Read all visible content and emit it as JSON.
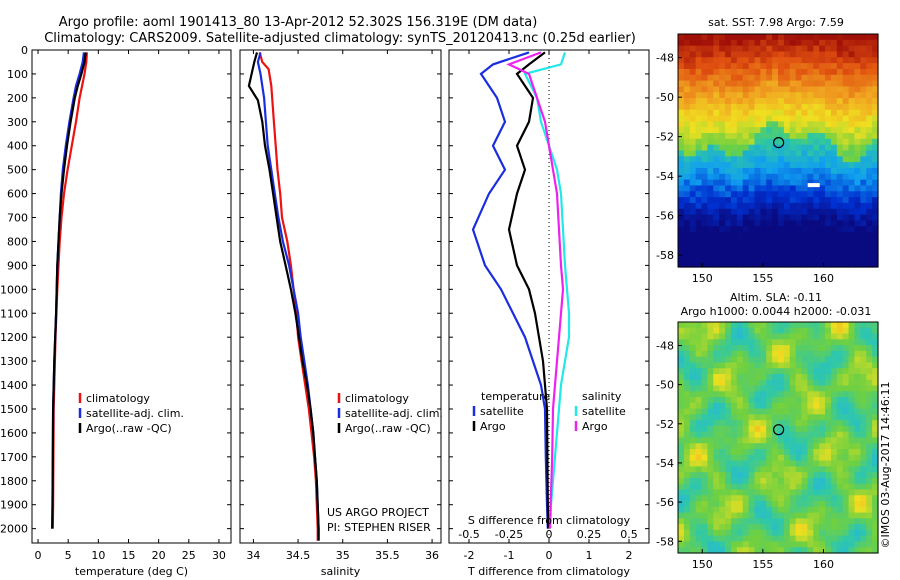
{
  "header": {
    "line1": "Argo profile: aoml 1901413_80 13-Apr-2012 52.302S 156.319E (DM data)",
    "line2": "Climatology: CARS2009. Satellite-adjusted climatology: synTS_20120413.nc (0.25d earlier)"
  },
  "side_stamp": "©IMOS 03-Aug-2017 14:46:11",
  "colors": {
    "climatology": "#ee1111",
    "satellite": "#1a2ee0",
    "argo": "#000000",
    "sal_satellite": "#22e8e8",
    "sal_argo": "#ee22ee"
  },
  "chart_data": [
    {
      "type": "line",
      "panel": "temperature",
      "xlabel": "temperature (deg C)",
      "ylabel": "",
      "xlim": [
        -1,
        32
      ],
      "ylim": [
        2060,
        0
      ],
      "xticks": [
        0,
        5,
        10,
        15,
        20,
        25,
        30
      ],
      "yticks": [
        0,
        100,
        200,
        300,
        400,
        500,
        600,
        700,
        800,
        900,
        1000,
        1100,
        1200,
        1300,
        1400,
        1500,
        1600,
        1700,
        1800,
        1900,
        2000
      ],
      "legend": [
        "climatology",
        "satellite-adj. clim.",
        "Argo(..raw -QC)"
      ],
      "series": [
        {
          "name": "climatology",
          "color": "#ee1111",
          "x": [
            8.1,
            8.0,
            7.7,
            7.3,
            6.9,
            6.3,
            5.6,
            4.9,
            4.3,
            3.9,
            3.6,
            3.4,
            3.2,
            3.05,
            2.9,
            2.8,
            2.7,
            2.6,
            2.55,
            2.5,
            2.45
          ],
          "y": [
            10,
            50,
            100,
            150,
            200,
            300,
            400,
            500,
            600,
            700,
            800,
            900,
            1000,
            1100,
            1200,
            1300,
            1400,
            1500,
            1700,
            1900,
            2000
          ]
        },
        {
          "name": "satellite-adj. clim.",
          "color": "#1a2ee0",
          "x": [
            7.6,
            7.4,
            6.9,
            6.3,
            5.9,
            5.2,
            4.6,
            4.1,
            3.8,
            3.6,
            3.4,
            3.2,
            3.1,
            3.0,
            2.85,
            2.7,
            2.6,
            2.5,
            2.45,
            2.4,
            2.35
          ],
          "y": [
            10,
            50,
            100,
            150,
            200,
            300,
            400,
            500,
            600,
            700,
            800,
            900,
            1000,
            1100,
            1200,
            1300,
            1400,
            1500,
            1700,
            1900,
            2000
          ]
        },
        {
          "name": "Argo(..raw -QC)",
          "color": "#000000",
          "x": [
            7.9,
            7.7,
            7.2,
            6.6,
            6.1,
            5.4,
            4.8,
            4.3,
            3.9,
            3.6,
            3.4,
            3.2,
            3.1,
            3.0,
            2.85,
            2.7,
            2.6,
            2.5,
            2.45,
            2.4,
            2.35
          ],
          "y": [
            10,
            50,
            100,
            150,
            200,
            300,
            400,
            500,
            600,
            700,
            800,
            900,
            1000,
            1100,
            1200,
            1300,
            1400,
            1500,
            1700,
            1900,
            2000
          ]
        }
      ]
    },
    {
      "type": "line",
      "panel": "salinity",
      "xlabel": "salinity",
      "ylabel": "",
      "xlim": [
        33.85,
        36.1
      ],
      "ylim": [
        2060,
        0
      ],
      "xticks": [
        34,
        34.5,
        35,
        35.5,
        36
      ],
      "legend": [
        "climatology",
        "satellite-adj. clim.",
        "Argo(..raw -QC)"
      ],
      "annotations": [
        "US ARGO PROJECT",
        "PI: STEPHEN RISER"
      ],
      "series": [
        {
          "name": "climatology",
          "color": "#ee1111",
          "x": [
            34.07,
            34.1,
            34.17,
            34.2,
            34.23,
            34.25,
            34.27,
            34.3,
            34.32,
            34.38,
            34.42,
            34.45,
            34.48,
            34.5,
            34.54,
            34.58,
            34.62,
            34.65,
            34.68,
            34.7,
            34.71,
            34.72,
            34.72
          ],
          "y": [
            10,
            50,
            80,
            150,
            300,
            400,
            500,
            600,
            700,
            800,
            900,
            1000,
            1100,
            1200,
            1300,
            1400,
            1500,
            1600,
            1700,
            1800,
            1900,
            2000,
            2050
          ]
        },
        {
          "name": "satellite-adj. clim.",
          "color": "#1a2ee0",
          "x": [
            34.08,
            34.05,
            34.08,
            34.12,
            34.14,
            34.16,
            34.2,
            34.24,
            34.28,
            34.33,
            34.4,
            34.45,
            34.5,
            34.53,
            34.57,
            34.61,
            34.64,
            34.67,
            34.69,
            34.71,
            34.72,
            34.73,
            34.73
          ],
          "y": [
            10,
            50,
            100,
            200,
            300,
            400,
            500,
            600,
            700,
            800,
            900,
            1000,
            1100,
            1200,
            1300,
            1400,
            1500,
            1600,
            1700,
            1800,
            1900,
            2000,
            2050
          ]
        },
        {
          "name": "Argo(..raw -QC)",
          "color": "#000000",
          "x": [
            34.04,
            34.01,
            33.95,
            34.05,
            34.1,
            34.13,
            34.18,
            34.22,
            34.26,
            34.3,
            34.36,
            34.42,
            34.47,
            34.51,
            34.55,
            34.6,
            34.64,
            34.67,
            34.69,
            34.71,
            34.72,
            34.73,
            34.73
          ],
          "y": [
            10,
            50,
            150,
            210,
            300,
            400,
            500,
            600,
            700,
            800,
            900,
            1000,
            1100,
            1200,
            1300,
            1400,
            1500,
            1600,
            1700,
            1800,
            1900,
            2000,
            2050
          ]
        }
      ]
    },
    {
      "type": "line",
      "panel": "difference",
      "xlabel": "T difference from climatology",
      "xlabel_top": "S difference from climatology",
      "xlim": [
        -2.5,
        2.5
      ],
      "ylim": [
        2060,
        0
      ],
      "xticks": [
        -2,
        -1,
        0,
        1,
        2
      ],
      "xticks_s": [
        "-0.5",
        "-0.25",
        "0",
        "0.25",
        "0.5"
      ],
      "legend_temperature": {
        "title": "temperature",
        "items": [
          "satellite",
          "Argo"
        ]
      },
      "legend_salinity": {
        "title": "salinity",
        "items": [
          "satellite",
          "Argo"
        ]
      },
      "series": [
        {
          "name": "temperature satellite",
          "color": "#1a2ee0",
          "x": [
            -0.5,
            -1.4,
            -1.7,
            -1.3,
            -1.1,
            -1.4,
            -1.1,
            -1.5,
            -1.9,
            -1.6,
            -1.2,
            -0.9,
            -0.6,
            -0.4,
            -0.2,
            -0.1,
            -0.08,
            -0.05,
            -0.03
          ],
          "y": [
            10,
            60,
            100,
            200,
            300,
            400,
            500,
            600,
            750,
            900,
            1000,
            1100,
            1200,
            1300,
            1400,
            1500,
            1700,
            1900,
            2000
          ]
        },
        {
          "name": "temperature Argo",
          "color": "#000000",
          "x": [
            -0.1,
            -0.5,
            -0.8,
            -0.4,
            -0.5,
            -0.8,
            -0.6,
            -0.8,
            -1.0,
            -0.8,
            -0.5,
            -0.35,
            -0.25,
            -0.15,
            -0.1,
            -0.05,
            -0.04,
            -0.03,
            -0.02
          ],
          "y": [
            10,
            60,
            100,
            200,
            300,
            400,
            500,
            600,
            750,
            900,
            1000,
            1100,
            1200,
            1300,
            1400,
            1500,
            1700,
            1900,
            2000
          ]
        },
        {
          "name": "salinity satellite",
          "color": "#22e8e8",
          "x": [
            0.4,
            0.3,
            -0.6,
            -0.3,
            -0.2,
            0,
            0.2,
            0.3,
            0.35,
            0.4,
            0.45,
            0.5,
            0.5,
            0.4,
            0.3,
            0.25,
            0.15,
            0.05,
            0.03
          ],
          "y": [
            10,
            60,
            100,
            200,
            300,
            400,
            500,
            600,
            750,
            900,
            1000,
            1100,
            1200,
            1300,
            1400,
            1500,
            1700,
            1900,
            2000
          ]
        },
        {
          "name": "salinity Argo",
          "color": "#ee22ee",
          "x": [
            -0.2,
            -1.0,
            -0.5,
            -0.3,
            -0.1,
            0,
            0.1,
            0.2,
            0.25,
            0.3,
            0.35,
            0.3,
            0.25,
            0.2,
            0.15,
            0.1,
            0.08,
            0.04,
            0.02
          ],
          "y": [
            10,
            60,
            100,
            200,
            300,
            400,
            500,
            600,
            750,
            900,
            1000,
            1100,
            1200,
            1300,
            1400,
            1500,
            1700,
            1900,
            2000
          ]
        }
      ]
    },
    {
      "type": "heatmap",
      "panel": "sst_map",
      "title": "sat. SST: 7.98 Argo: 7.59",
      "xlim": [
        148,
        164.5
      ],
      "ylim": [
        -58.6,
        -46.8
      ],
      "xticks": [
        150,
        155,
        160
      ],
      "yticks": [
        -48,
        -50,
        -52,
        -54,
        -56,
        -58
      ],
      "marker": {
        "lon": 156.3,
        "lat": -52.3
      },
      "colorscale": [
        "#0a0a80",
        "#0030d0",
        "#10a0f0",
        "#30c8a0",
        "#70d040",
        "#f0e020",
        "#f0a020",
        "#e05010",
        "#a01008"
      ]
    },
    {
      "type": "heatmap",
      "panel": "sla_map",
      "title_line1": "Altim. SLA: -0.11",
      "title_line2": "Argo h1000: 0.0044 h2000: -0.031",
      "xlim": [
        148,
        164.5
      ],
      "ylim": [
        -58.6,
        -46.8
      ],
      "xticks": [
        150,
        155,
        160
      ],
      "yticks": [
        -48,
        -50,
        -52,
        -54,
        -56,
        -58
      ],
      "marker": {
        "lon": 156.3,
        "lat": -52.3
      },
      "colorscale": [
        "#1060d0",
        "#20b0f0",
        "#30c8a8",
        "#70d040",
        "#f0e020",
        "#f09020"
      ]
    }
  ]
}
